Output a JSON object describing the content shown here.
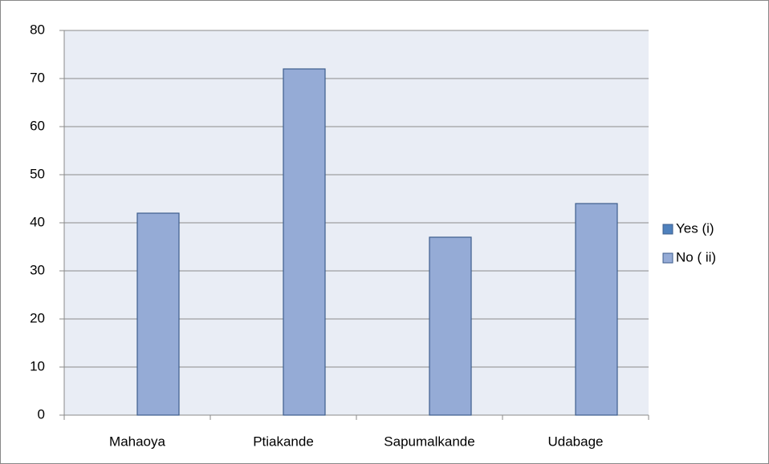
{
  "chart_data": {
    "type": "bar",
    "categories": [
      "Mahaoya",
      "Ptiakande",
      "Sapumalkande",
      "Udabage"
    ],
    "series": [
      {
        "name": "Yes (i)",
        "color": "#4f81bd",
        "values": [
          0,
          0,
          0,
          0
        ]
      },
      {
        "name": "No ( ii)",
        "color": "#95abd6",
        "values": [
          42,
          72,
          37,
          44
        ]
      }
    ],
    "ylim": [
      0,
      80
    ],
    "yticks": [
      0,
      10,
      20,
      30,
      40,
      50,
      60,
      70,
      80
    ],
    "grid": true,
    "legend": "right"
  }
}
